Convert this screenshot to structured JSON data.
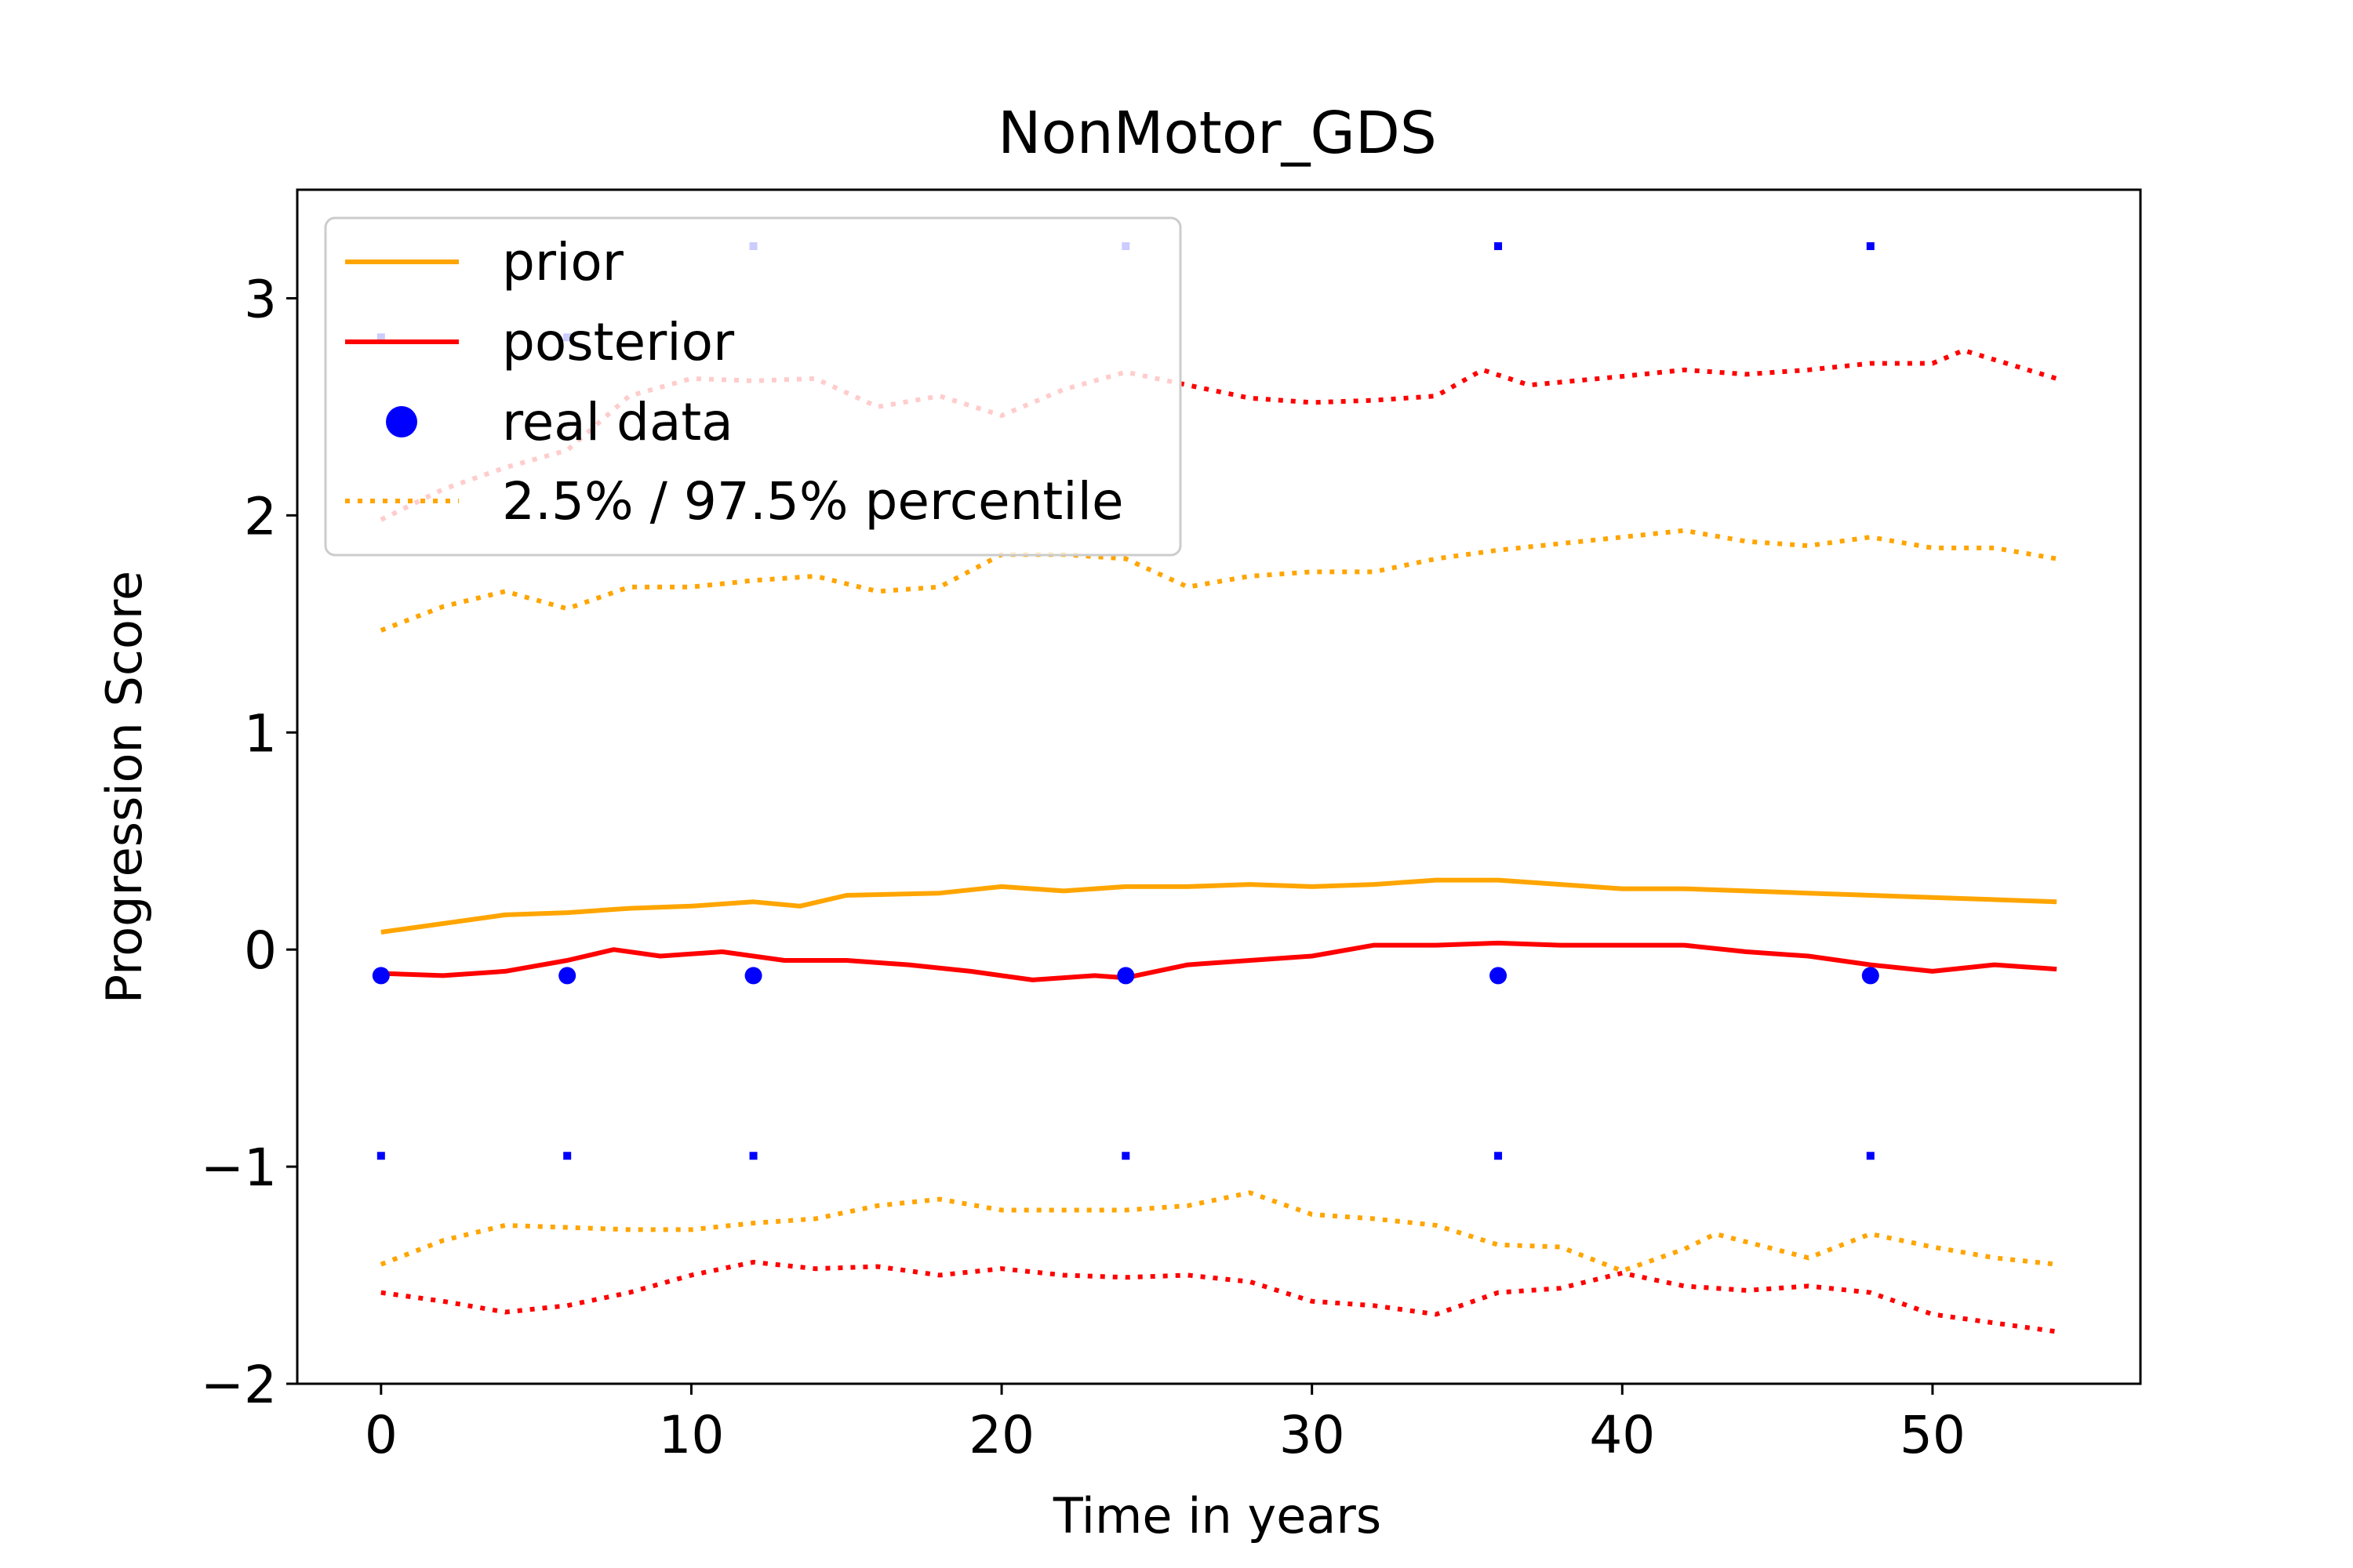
{
  "chart_data": {
    "type": "line",
    "title": "NonMotor_GDS",
    "xlabel": "Time in years",
    "ylabel": "Progression Score",
    "xlim": [
      -2.7,
      56.7
    ],
    "ylim": [
      -2.0,
      3.5
    ],
    "xticks": [
      0,
      10,
      20,
      30,
      40,
      50
    ],
    "yticks": [
      -2,
      -1,
      0,
      1,
      2,
      3
    ],
    "legend_position": "top-left",
    "legend": [
      "prior",
      "posterior",
      "real data",
      "2.5% / 97.5% percentile"
    ],
    "series": [
      {
        "name": "prior",
        "role": "line",
        "color": "#ffa500",
        "points": [
          [
            0,
            0.08
          ],
          [
            2,
            0.12
          ],
          [
            4,
            0.16
          ],
          [
            6,
            0.17
          ],
          [
            8,
            0.19
          ],
          [
            10,
            0.2
          ],
          [
            12,
            0.22
          ],
          [
            13.5,
            0.2
          ],
          [
            15,
            0.25
          ],
          [
            18,
            0.26
          ],
          [
            20,
            0.29
          ],
          [
            22,
            0.27
          ],
          [
            24,
            0.29
          ],
          [
            26,
            0.29
          ],
          [
            28,
            0.3
          ],
          [
            30,
            0.29
          ],
          [
            32,
            0.3
          ],
          [
            34,
            0.32
          ],
          [
            36,
            0.32
          ],
          [
            38,
            0.3
          ],
          [
            40,
            0.28
          ],
          [
            42,
            0.28
          ],
          [
            44,
            0.27
          ],
          [
            46,
            0.26
          ],
          [
            48,
            0.25
          ],
          [
            50,
            0.24
          ],
          [
            52,
            0.23
          ],
          [
            54,
            0.22
          ]
        ]
      },
      {
        "name": "posterior",
        "role": "line",
        "color": "#ff0000",
        "points": [
          [
            0,
            -0.11
          ],
          [
            2,
            -0.12
          ],
          [
            4,
            -0.1
          ],
          [
            6,
            -0.05
          ],
          [
            7.5,
            0
          ],
          [
            9,
            -0.03
          ],
          [
            11,
            -0.01
          ],
          [
            13,
            -0.05
          ],
          [
            15,
            -0.05
          ],
          [
            17,
            -0.07
          ],
          [
            19,
            -0.1
          ],
          [
            21,
            -0.14
          ],
          [
            23,
            -0.12
          ],
          [
            24,
            -0.13
          ],
          [
            26,
            -0.07
          ],
          [
            28,
            -0.05
          ],
          [
            30,
            -0.03
          ],
          [
            32,
            0.02
          ],
          [
            34,
            0.02
          ],
          [
            36,
            0.03
          ],
          [
            38,
            0.02
          ],
          [
            40,
            0.02
          ],
          [
            42,
            0.02
          ],
          [
            44,
            -0.01
          ],
          [
            46,
            -0.03
          ],
          [
            48,
            -0.07
          ],
          [
            50,
            -0.1
          ],
          [
            52,
            -0.07
          ],
          [
            54,
            -0.09
          ]
        ]
      },
      {
        "name": "2.5% / 97.5% percentile",
        "role": "percentile",
        "color": "#ffa500",
        "points": [
          [
            0,
            1.47
          ],
          [
            2,
            1.58
          ],
          [
            4,
            1.65
          ],
          [
            6,
            1.57
          ],
          [
            8,
            1.67
          ],
          [
            10,
            1.67
          ],
          [
            12,
            1.7
          ],
          [
            14,
            1.72
          ],
          [
            16,
            1.65
          ],
          [
            18,
            1.67
          ],
          [
            20,
            1.82
          ],
          [
            22,
            1.82
          ],
          [
            24,
            1.8
          ],
          [
            26,
            1.67
          ],
          [
            28,
            1.72
          ],
          [
            30,
            1.74
          ],
          [
            32,
            1.74
          ],
          [
            34,
            1.8
          ],
          [
            36,
            1.84
          ],
          [
            38,
            1.87
          ],
          [
            40,
            1.9
          ],
          [
            42,
            1.93
          ],
          [
            44,
            1.88
          ],
          [
            46,
            1.86
          ],
          [
            48,
            1.9
          ],
          [
            50,
            1.85
          ],
          [
            52,
            1.85
          ],
          [
            54,
            1.8
          ]
        ]
      },
      {
        "name": "",
        "role": "percentile",
        "color": "#ffa500",
        "points": [
          [
            0,
            -1.45
          ],
          [
            2,
            -1.34
          ],
          [
            4,
            -1.27
          ],
          [
            6,
            -1.28
          ],
          [
            8,
            -1.29
          ],
          [
            10,
            -1.29
          ],
          [
            12,
            -1.26
          ],
          [
            14,
            -1.24
          ],
          [
            16,
            -1.18
          ],
          [
            18,
            -1.15
          ],
          [
            20,
            -1.2
          ],
          [
            22,
            -1.2
          ],
          [
            24,
            -1.2
          ],
          [
            26,
            -1.18
          ],
          [
            28,
            -1.12
          ],
          [
            30,
            -1.22
          ],
          [
            32,
            -1.24
          ],
          [
            34,
            -1.27
          ],
          [
            36,
            -1.36
          ],
          [
            38,
            -1.37
          ],
          [
            40,
            -1.48
          ],
          [
            42,
            -1.38
          ],
          [
            43,
            -1.31
          ],
          [
            46,
            -1.42
          ],
          [
            48,
            -1.31
          ],
          [
            50,
            -1.37
          ],
          [
            52,
            -1.42
          ],
          [
            54,
            -1.45
          ]
        ]
      },
      {
        "name": "",
        "role": "percentile",
        "color": "#ff0000",
        "points": [
          [
            0,
            -1.58
          ],
          [
            2,
            -1.62
          ],
          [
            4,
            -1.67
          ],
          [
            6,
            -1.64
          ],
          [
            8,
            -1.58
          ],
          [
            10,
            -1.5
          ],
          [
            12,
            -1.44
          ],
          [
            14,
            -1.47
          ],
          [
            16,
            -1.46
          ],
          [
            18,
            -1.5
          ],
          [
            20,
            -1.47
          ],
          [
            22,
            -1.5
          ],
          [
            24,
            -1.51
          ],
          [
            26,
            -1.5
          ],
          [
            28,
            -1.53
          ],
          [
            30,
            -1.62
          ],
          [
            32,
            -1.64
          ],
          [
            34,
            -1.68
          ],
          [
            36,
            -1.58
          ],
          [
            38,
            -1.56
          ],
          [
            40,
            -1.49
          ],
          [
            42,
            -1.55
          ],
          [
            44,
            -1.57
          ],
          [
            46,
            -1.55
          ],
          [
            48,
            -1.58
          ],
          [
            50,
            -1.68
          ],
          [
            52,
            -1.72
          ],
          [
            54,
            -1.76
          ]
        ]
      },
      {
        "name": "",
        "role": "percentile",
        "color": "#ff0000",
        "points": [
          [
            0,
            1.98
          ],
          [
            2,
            2.12
          ],
          [
            4,
            2.22
          ],
          [
            6,
            2.3
          ],
          [
            8,
            2.55
          ],
          [
            10,
            2.63
          ],
          [
            12,
            2.62
          ],
          [
            14,
            2.63
          ],
          [
            16,
            2.5
          ],
          [
            18,
            2.55
          ],
          [
            20,
            2.46
          ],
          [
            22,
            2.58
          ],
          [
            24,
            2.66
          ],
          [
            26,
            2.6
          ],
          [
            28,
            2.54
          ],
          [
            30,
            2.52
          ],
          [
            32,
            2.53
          ],
          [
            34,
            2.55
          ],
          [
            35.5,
            2.67
          ],
          [
            37,
            2.6
          ],
          [
            40,
            2.64
          ],
          [
            42,
            2.67
          ],
          [
            44,
            2.65
          ],
          [
            46,
            2.67
          ],
          [
            48,
            2.7
          ],
          [
            50,
            2.7
          ],
          [
            51,
            2.76
          ],
          [
            54,
            2.63
          ]
        ]
      },
      {
        "name": "real data",
        "role": "observed",
        "color": "#0000ff",
        "points": [
          [
            0,
            -0.12
          ],
          [
            6,
            -0.12
          ],
          [
            12,
            -0.12
          ],
          [
            24,
            -0.12
          ],
          [
            36,
            -0.12
          ],
          [
            48,
            -0.12
          ]
        ]
      },
      {
        "name": "",
        "role": "bounds",
        "color": "#0000ff",
        "points": [
          [
            0,
            -0.95
          ],
          [
            6,
            -0.95
          ],
          [
            12,
            -0.95
          ],
          [
            24,
            -0.95
          ],
          [
            36,
            -0.95
          ],
          [
            48,
            -0.95
          ],
          [
            0,
            2.82
          ],
          [
            6,
            2.82
          ],
          [
            12,
            3.24
          ],
          [
            24,
            3.24
          ],
          [
            36,
            3.24
          ],
          [
            48,
            3.24
          ]
        ]
      }
    ]
  }
}
